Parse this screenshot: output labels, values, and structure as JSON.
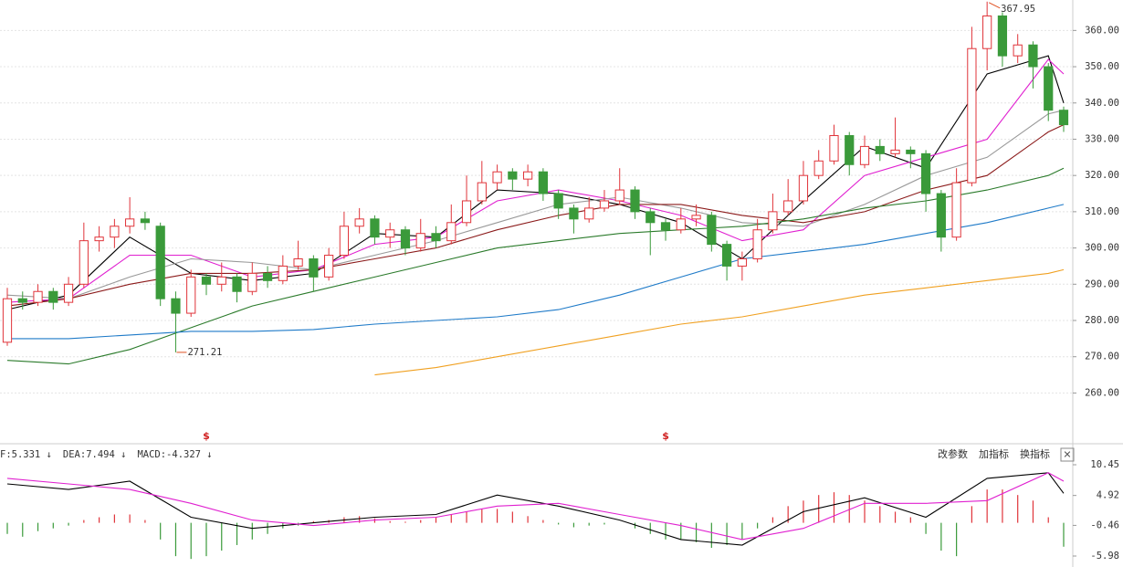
{
  "chart_data": [
    {
      "type": "candlestick",
      "candles": [
        [
          274,
          289,
          273,
          286
        ],
        [
          286,
          288,
          283,
          285
        ],
        [
          285,
          290,
          284,
          288
        ],
        [
          288,
          289,
          283,
          285
        ],
        [
          285,
          292,
          284,
          290
        ],
        [
          290,
          307,
          289,
          302
        ],
        [
          302,
          306,
          299,
          303
        ],
        [
          303,
          308,
          300,
          306
        ],
        [
          306,
          314,
          304,
          308
        ],
        [
          308,
          310,
          305,
          307
        ],
        [
          306,
          307,
          284,
          286
        ],
        [
          286,
          288,
          271.21,
          282
        ],
        [
          282,
          294,
          281,
          292
        ],
        [
          292,
          293,
          287,
          290
        ],
        [
          290,
          296,
          288,
          292
        ],
        [
          292,
          293,
          285,
          288
        ],
        [
          288,
          296,
          287,
          293
        ],
        [
          293,
          295,
          289,
          291
        ],
        [
          291,
          298,
          290,
          295
        ],
        [
          295,
          302,
          294,
          297
        ],
        [
          297,
          298,
          288,
          292
        ],
        [
          292,
          300,
          291,
          298
        ],
        [
          298,
          310,
          297,
          306
        ],
        [
          306,
          311,
          304,
          308
        ],
        [
          308,
          309,
          301,
          303
        ],
        [
          303,
          307,
          300,
          305
        ],
        [
          305,
          306,
          298,
          300
        ],
        [
          300,
          308,
          299,
          304
        ],
        [
          304,
          306,
          300,
          302
        ],
        [
          302,
          312,
          301,
          307
        ],
        [
          307,
          320,
          306,
          313
        ],
        [
          313,
          324,
          312,
          318
        ],
        [
          318,
          323,
          316,
          321
        ],
        [
          321,
          322,
          316,
          319
        ],
        [
          319,
          323,
          317,
          321
        ],
        [
          321,
          322,
          313,
          315
        ],
        [
          315,
          316,
          308,
          311
        ],
        [
          311,
          312,
          304,
          308
        ],
        [
          308,
          314,
          307,
          311
        ],
        [
          311,
          316,
          310,
          313
        ],
        [
          313,
          322,
          312,
          316
        ],
        [
          316,
          317,
          308,
          310
        ],
        [
          310,
          311,
          298,
          307
        ],
        [
          307,
          308,
          302,
          305
        ],
        [
          305,
          311,
          304,
          308
        ],
        [
          308,
          312,
          306,
          309
        ],
        [
          309,
          310,
          299,
          301
        ],
        [
          301,
          302,
          291,
          295
        ],
        [
          295,
          299,
          291,
          297
        ],
        [
          297,
          308,
          296,
          305
        ],
        [
          305,
          315,
          304,
          310
        ],
        [
          310,
          319,
          309,
          313
        ],
        [
          313,
          324,
          312,
          320
        ],
        [
          320,
          327,
          319,
          324
        ],
        [
          324,
          334,
          323,
          331
        ],
        [
          331,
          332,
          320,
          323
        ],
        [
          323,
          331,
          322,
          328
        ],
        [
          328,
          330,
          324,
          326
        ],
        [
          326,
          336,
          325,
          327
        ],
        [
          327,
          328,
          322,
          326
        ],
        [
          326,
          327,
          310,
          315
        ],
        [
          315,
          316,
          299,
          303
        ],
        [
          303,
          322,
          302,
          318
        ],
        [
          318,
          361,
          317,
          355
        ],
        [
          355,
          367.95,
          349,
          364
        ],
        [
          364,
          365,
          350,
          353
        ],
        [
          353,
          359,
          351,
          356
        ],
        [
          356,
          357,
          344,
          350
        ],
        [
          350,
          351,
          335,
          338
        ],
        [
          338,
          339,
          332,
          334
        ]
      ],
      "up_color": "#e0343a",
      "down_color": "#3a9a3a",
      "lines": [
        {
          "color": "#000000",
          "x": [
            0,
            4,
            8,
            12,
            16,
            20,
            24,
            28,
            32,
            36,
            40,
            44,
            48,
            52,
            56,
            60,
            64,
            68,
            69
          ],
          "values": [
            283,
            287,
            303,
            293,
            291,
            293,
            304,
            303,
            316,
            315,
            312,
            307,
            297,
            313,
            328,
            322,
            348,
            353,
            340
          ]
        },
        {
          "color": "#e020d0",
          "x": [
            0,
            4,
            8,
            12,
            16,
            20,
            24,
            28,
            32,
            36,
            40,
            44,
            48,
            52,
            56,
            60,
            64,
            68,
            69
          ],
          "values": [
            285,
            286,
            298,
            298,
            292,
            294,
            301,
            303,
            313,
            316,
            313,
            309,
            302,
            305,
            320,
            325,
            330,
            352,
            348
          ]
        },
        {
          "color": "#999999",
          "x": [
            0,
            4,
            8,
            12,
            16,
            20,
            24,
            28,
            32,
            36,
            40,
            44,
            48,
            52,
            56,
            60,
            64,
            68,
            69
          ],
          "values": [
            287,
            286,
            292,
            297,
            296,
            294,
            298,
            302,
            307,
            312,
            314,
            311,
            307,
            306,
            312,
            320,
            325,
            337,
            338
          ]
        },
        {
          "color": "#8b1a1a",
          "x": [
            0,
            4,
            8,
            12,
            16,
            20,
            24,
            28,
            32,
            36,
            40,
            44,
            48,
            52,
            56,
            60,
            64,
            68,
            69
          ],
          "values": [
            284,
            286,
            290,
            293,
            293,
            294,
            297,
            300,
            305,
            309,
            312,
            312,
            309,
            307,
            310,
            316,
            320,
            332,
            334
          ]
        },
        {
          "color": "#2a7a2a",
          "x": [
            0,
            4,
            8,
            12,
            16,
            20,
            24,
            28,
            32,
            36,
            40,
            44,
            48,
            52,
            56,
            60,
            64,
            68,
            69
          ],
          "values": [
            269,
            268,
            272,
            278,
            284,
            288,
            292,
            296,
            300,
            302,
            304,
            305,
            306,
            308,
            311,
            313,
            316,
            320,
            322
          ]
        },
        {
          "color": "#1e7ac8",
          "x": [
            0,
            4,
            8,
            12,
            16,
            20,
            24,
            28,
            32,
            36,
            40,
            44,
            48,
            52,
            56,
            60,
            64,
            68,
            69
          ],
          "values": [
            275,
            275,
            276,
            277,
            277,
            277.5,
            279,
            280,
            281,
            283,
            287,
            292,
            297,
            299,
            301,
            304,
            307,
            311,
            312
          ]
        },
        {
          "color": "#f0a020",
          "x": [
            24,
            28,
            32,
            36,
            40,
            44,
            48,
            52,
            56,
            60,
            64,
            68,
            69
          ],
          "values": [
            265,
            267,
            270,
            273,
            276,
            279,
            281,
            284,
            287,
            289,
            291,
            293,
            294
          ]
        }
      ],
      "ylim": [
        246,
        368.4
      ],
      "yticks": [
        {
          "value": 260,
          "label": "260.00"
        },
        {
          "value": 270,
          "label": "270.00"
        },
        {
          "value": 280,
          "label": "280.00"
        },
        {
          "value": 290,
          "label": "290.00"
        },
        {
          "value": 300,
          "label": "300.00"
        },
        {
          "value": 310,
          "label": "310.00"
        },
        {
          "value": 320,
          "label": "320.00"
        },
        {
          "value": 330,
          "label": "330.00"
        },
        {
          "value": 340,
          "label": "340.00"
        },
        {
          "value": 350,
          "label": "350.00"
        },
        {
          "value": 360,
          "label": "360.00"
        }
      ],
      "high_label": 367.95,
      "low_label": 271.21,
      "event_markers": {
        "label": "$",
        "x": [
          13,
          43
        ]
      },
      "grid": true
    },
    {
      "type": "macd",
      "legend": [
        {
          "text": "F:5.331 ↓",
          "color": "#000000"
        },
        {
          "text": "DEA:7.494 ↓",
          "color": "#e020d0"
        },
        {
          "text": "MACD:-4.327 ↓",
          "color": "#777777"
        }
      ],
      "histogram": [
        -2,
        -2.5,
        -1.5,
        -1,
        -0.5,
        0.5,
        1,
        1.5,
        1.5,
        0.5,
        -3,
        -6,
        -6.5,
        -6,
        -5,
        -4,
        -3,
        -2,
        -1,
        -0.5,
        0.3,
        0.5,
        1,
        1.2,
        0.8,
        0.3,
        0.2,
        0.5,
        1,
        1.5,
        2,
        2.5,
        2.5,
        2,
        1.2,
        0.5,
        -0.3,
        -0.8,
        -0.5,
        -0.3,
        0,
        -1,
        -2,
        -3,
        -3,
        -3.5,
        -4.5,
        -4,
        -3,
        -1,
        1,
        3,
        4,
        5,
        5.5,
        5,
        4,
        3,
        2,
        1,
        -2,
        -5,
        -6,
        3,
        6,
        6,
        5,
        4,
        1,
        -4.3
      ],
      "lines": [
        {
          "color": "#000000",
          "x": [
            0,
            4,
            8,
            12,
            16,
            20,
            24,
            28,
            32,
            36,
            40,
            44,
            48,
            52,
            56,
            60,
            64,
            68,
            69
          ],
          "values": [
            7,
            6,
            7.5,
            1,
            -1,
            0,
            1,
            1.5,
            5,
            3,
            0.5,
            -3,
            -4,
            2,
            4.5,
            1,
            8,
            9,
            5.3
          ]
        },
        {
          "color": "#e020d0",
          "x": [
            0,
            4,
            8,
            12,
            16,
            20,
            24,
            28,
            32,
            36,
            40,
            44,
            48,
            52,
            56,
            60,
            64,
            68,
            69
          ],
          "values": [
            8,
            7,
            6,
            3.5,
            0.5,
            -0.5,
            0.5,
            1,
            3,
            3.5,
            1.5,
            -0.5,
            -3,
            -1,
            3.5,
            3.5,
            4,
            9,
            7.5
          ]
        }
      ],
      "ylim": [
        -7.95,
        13.57
      ],
      "yticks": [
        -5.98,
        -0.46,
        4.92,
        10.45
      ]
    }
  ],
  "toolbar": [
    "改参数",
    "加指标",
    "换指标"
  ],
  "close_button": "✕"
}
